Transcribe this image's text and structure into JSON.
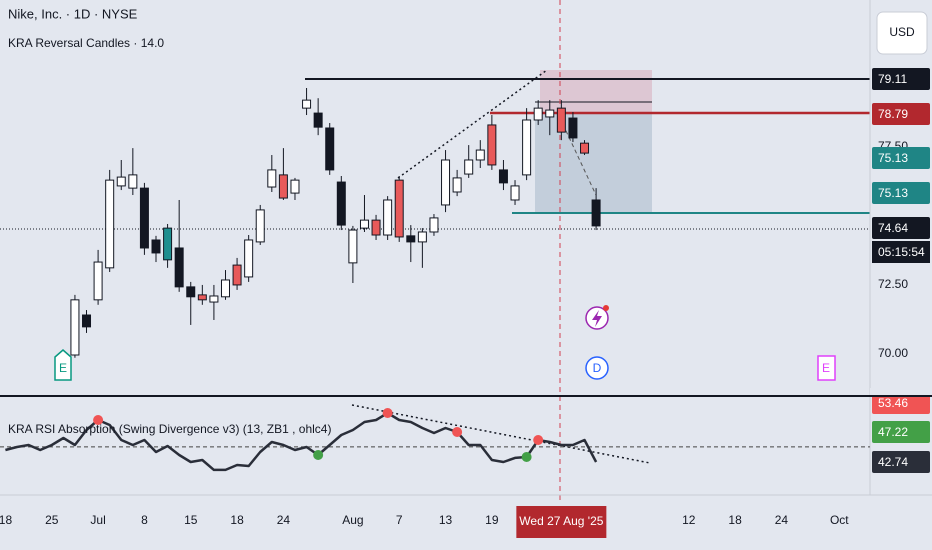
{
  "header": {
    "symbol": "Nike, Inc. · 1D · NYSE",
    "indicator": "KRA Reversal Candles · 14.0",
    "currency": "USD"
  },
  "chart_data": {
    "type": "candlestick",
    "xlim": [
      -0.47,
      74.65
    ],
    "ylim": [
      68.51,
      82.83
    ],
    "yticks": [
      {
        "value": 70,
        "label": "70.00"
      },
      {
        "value": 72.5,
        "label": "72.50"
      },
      {
        "value": 77.5,
        "label": "77.50"
      }
    ],
    "xticks": [
      {
        "value": 0,
        "label": "18"
      },
      {
        "value": 4,
        "label": "25"
      },
      {
        "value": 8,
        "label": "Jul"
      },
      {
        "value": 12,
        "label": "8"
      },
      {
        "value": 16,
        "label": "15"
      },
      {
        "value": 20,
        "label": "18"
      },
      {
        "value": 24,
        "label": "24"
      },
      {
        "value": 30,
        "label": "Aug"
      },
      {
        "value": 34,
        "label": "7"
      },
      {
        "value": 38,
        "label": "13"
      },
      {
        "value": 42,
        "label": "19"
      },
      {
        "value": 59,
        "label": "12"
      },
      {
        "value": 63,
        "label": "18"
      },
      {
        "value": 67,
        "label": "24"
      },
      {
        "value": 72,
        "label": "Oct"
      }
    ],
    "crosshair_label": {
      "value": 48,
      "label": "Wed 27 Aug '25"
    },
    "open": [
      null,
      null,
      null,
      null,
      null,
      null,
      69.96,
      71.41,
      71.96,
      73.12,
      76.09,
      76.01,
      76.01,
      74.13,
      73.41,
      73.84,
      72.43,
      72.14,
      71.88,
      72.07,
      72.5,
      72.79,
      74.06,
      76.05,
      76.49,
      75.83,
      78.91,
      78.73,
      78.19,
      76.23,
      73.3,
      74.56,
      74.85,
      74.31,
      76.3,
      74.28,
      74.06,
      74.42,
      75.4,
      75.87,
      76.52,
      77.03,
      76.85,
      76.67,
      75.58,
      76.49,
      78.48,
      78.59,
      78.91,
      78.55,
      77.64,
      75.58
    ],
    "high": [
      null,
      null,
      null,
      null,
      null,
      null,
      72.14,
      71.59,
      73.77,
      76.67,
      77.03,
      77.46,
      76.2,
      74.28,
      74.71,
      75.58,
      72.61,
      72.5,
      72.5,
      73.04,
      73.48,
      74.31,
      75.4,
      77.21,
      77.46,
      76.38,
      79.64,
      79.27,
      78.37,
      76.45,
      74.64,
      75.76,
      75.04,
      75.72,
      76.45,
      74.67,
      74.56,
      75.07,
      77.39,
      76.67,
      77.57,
      77.75,
      78.66,
      77.03,
      76.3,
      78.91,
      79.2,
      79.2,
      79.2,
      78.77,
      77.75,
      76.01
    ],
    "low": [
      null,
      null,
      null,
      null,
      null,
      null,
      69.86,
      70.76,
      71.78,
      72.97,
      75.94,
      75.76,
      73.59,
      73.33,
      73.12,
      72.25,
      71.05,
      71.78,
      71.23,
      71.96,
      72.32,
      72.61,
      73.95,
      75.87,
      75.58,
      75.58,
      78.66,
      77.93,
      76.49,
      74.49,
      72.57,
      74.42,
      74.13,
      74.13,
      74.06,
      73.33,
      73.12,
      74.28,
      75.14,
      75.72,
      76.38,
      76.74,
      76.67,
      75.94,
      75.4,
      76.3,
      78.3,
      77.93,
      77.75,
      77.68,
      77.21,
      74.49
    ],
    "close": [
      null,
      null,
      null,
      null,
      null,
      null,
      71.96,
      70.98,
      73.33,
      76.3,
      76.41,
      76.49,
      73.84,
      73.66,
      74.56,
      72.43,
      72.07,
      71.96,
      72.1,
      72.68,
      73.22,
      74.13,
      75.22,
      76.67,
      75.65,
      76.3,
      79.2,
      78.22,
      76.67,
      74.67,
      74.49,
      74.85,
      74.31,
      75.58,
      74.24,
      74.06,
      74.42,
      74.93,
      77.03,
      76.38,
      77.03,
      77.39,
      78.3,
      76.2,
      76.09,
      78.48,
      78.91,
      78.84,
      78.04,
      77.83,
      77.28,
      74.64
    ],
    "colors": [
      null,
      null,
      null,
      null,
      null,
      null,
      "#ffffff",
      "#131722",
      "#ffffff",
      "#ffffff",
      "#ffffff",
      "#ffffff",
      "#131722",
      "#131722",
      "#1f8f8f",
      "#131722",
      "#131722",
      "#e85a5a",
      "#ffffff",
      "#ffffff",
      "#e85a5a",
      "#ffffff",
      "#ffffff",
      "#ffffff",
      "#e85a5a",
      "#ffffff",
      "#ffffff",
      "#131722",
      "#131722",
      "#131722",
      "#ffffff",
      "#ffffff",
      "#e85a5a",
      "#ffffff",
      "#e85a5a",
      "#131722",
      "#ffffff",
      "#ffffff",
      "#ffffff",
      "#ffffff",
      "#ffffff",
      "#ffffff",
      "#e85a5a",
      "#131722",
      "#ffffff",
      "#ffffff",
      "#ffffff",
      "#ffffff",
      "#e85a5a",
      "#131722",
      "#e85a5a",
      "#131722"
    ],
    "price_tags": {
      "values": [
        79.11,
        78.79,
        75.13,
        75.13,
        74.64
      ],
      "colors": [
        "#131722",
        "#b2282e",
        "#1f8585",
        "#1f8585",
        "#131722"
      ],
      "countdown": "05:15:54"
    },
    "rsi": {
      "title": "KRA RSI Absorption (Swing Divergence v3) (13, ZB1 , ohlc4)",
      "ylim": [
        38.27,
        52.44
      ],
      "level": 45,
      "color": "#2a2e39",
      "values": [
        44.53,
        44.98,
        45.28,
        44.53,
        45.28,
        46.33,
        45.28,
        47.52,
        49.01,
        48.26,
        46.03,
        45.28,
        46.03,
        44.24,
        45.13,
        43.79,
        42.75,
        43.05,
        41.56,
        41.56,
        42.3,
        42.15,
        44.24,
        45.73,
        45.28,
        44.53,
        44.98,
        43.79,
        45.28,
        46.77,
        47.52,
        48.71,
        49.01,
        50.05,
        49.01,
        48.71,
        47.82,
        47.07,
        47.82,
        47.22,
        45.28,
        45.28,
        43.05,
        42.75,
        43.35,
        43.49,
        46.03,
        45.73,
        45.28,
        45.28,
        46.03,
        42.74
      ],
      "bear_marks": [
        null,
        null,
        null,
        null,
        null,
        null,
        null,
        null,
        49.01,
        null,
        null,
        null,
        null,
        null,
        null,
        null,
        null,
        null,
        null,
        null,
        null,
        null,
        null,
        null,
        null,
        null,
        null,
        null,
        null,
        null,
        null,
        null,
        null,
        50.05,
        null,
        null,
        null,
        null,
        null,
        47.22,
        null,
        null,
        null,
        null,
        null,
        null,
        46.03,
        null,
        null,
        null,
        null,
        null
      ],
      "bull_marks": [
        null,
        null,
        null,
        null,
        null,
        null,
        null,
        null,
        null,
        null,
        null,
        null,
        null,
        null,
        null,
        null,
        null,
        null,
        null,
        null,
        null,
        null,
        null,
        null,
        null,
        null,
        null,
        43.79,
        null,
        null,
        null,
        null,
        null,
        null,
        null,
        null,
        null,
        null,
        null,
        null,
        null,
        null,
        null,
        null,
        null,
        43.49,
        null,
        null,
        null,
        null,
        null,
        null
      ],
      "bear_color": "#f05454",
      "bull_color": "#43a047",
      "tags": {
        "values": [
          53.46,
          47.22,
          42.74
        ],
        "colors": [
          "#f05454",
          "#43a047",
          "#2a2e39"
        ]
      }
    }
  },
  "events": {
    "earnings_1": "E",
    "dividend": "D",
    "earnings_2": "E"
  }
}
